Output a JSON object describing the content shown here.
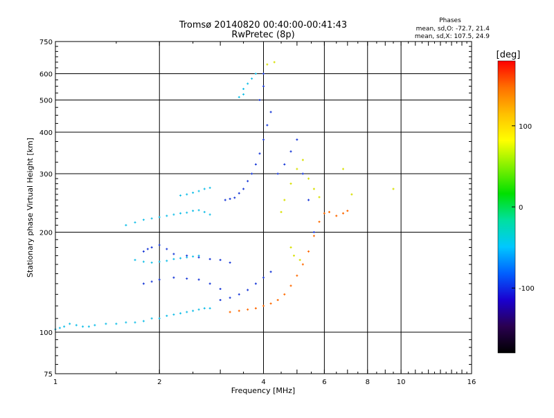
{
  "chart_data": {
    "type": "scatter",
    "title": "Tromsø 20140820 00:40:00-00:41:43",
    "subtitle": "RwPretec (8p)",
    "xlabel": "Frequency [MHz]",
    "ylabel": "Stationary phase Virtual Height [km]",
    "x_scale": "log",
    "y_scale": "log",
    "xlim": [
      1,
      16
    ],
    "ylim": [
      75,
      750
    ],
    "x_ticks": [
      1,
      2,
      4,
      6,
      8,
      10,
      16
    ],
    "y_ticks": [
      75,
      100,
      200,
      300,
      400,
      500,
      600,
      750
    ],
    "grid": true,
    "legend": {
      "title": "Phases",
      "lines": [
        "mean, sd,O: -72.7, 21.4",
        "mean, sd,X: 107.5, 24.9"
      ]
    },
    "colorbar": {
      "label": "[deg]",
      "ticks": [
        100,
        0,
        -100
      ],
      "range": [
        -180,
        180
      ],
      "colors": [
        "#000000",
        "#2a0050",
        "#1a00d0",
        "#0060ff",
        "#00c8ff",
        "#00e0a0",
        "#00e000",
        "#80f000",
        "#ffff00",
        "#ffc000",
        "#ff7000",
        "#ff0000"
      ]
    },
    "series": [
      {
        "description_color": "cyan (~-40 deg)",
        "points": [
          [
            1.0,
            102
          ],
          [
            1.03,
            103
          ],
          [
            1.06,
            104
          ],
          [
            1.1,
            106
          ],
          [
            1.15,
            105
          ],
          [
            1.2,
            104
          ],
          [
            1.25,
            104
          ],
          [
            1.3,
            105
          ],
          [
            1.4,
            106
          ],
          [
            1.5,
            106
          ],
          [
            1.6,
            107
          ],
          [
            1.7,
            107
          ],
          [
            1.8,
            108
          ],
          [
            1.9,
            110
          ],
          [
            2.0,
            110
          ],
          [
            2.1,
            112
          ],
          [
            2.2,
            113
          ],
          [
            2.3,
            114
          ],
          [
            2.4,
            115
          ],
          [
            2.5,
            116
          ],
          [
            2.6,
            117
          ],
          [
            2.7,
            118
          ],
          [
            2.8,
            118
          ],
          [
            1.6,
            210
          ],
          [
            1.7,
            214
          ],
          [
            1.8,
            218
          ],
          [
            1.9,
            220
          ],
          [
            2.0,
            222
          ],
          [
            2.1,
            224
          ],
          [
            2.2,
            226
          ],
          [
            2.3,
            228
          ],
          [
            2.4,
            229
          ],
          [
            2.5,
            232
          ],
          [
            2.6,
            233
          ],
          [
            2.7,
            230
          ],
          [
            2.8,
            226
          ],
          [
            2.3,
            258
          ],
          [
            2.4,
            260
          ],
          [
            2.5,
            263
          ],
          [
            2.6,
            266
          ],
          [
            2.7,
            270
          ],
          [
            2.8,
            272
          ],
          [
            1.7,
            165
          ],
          [
            1.8,
            163
          ],
          [
            1.9,
            162
          ],
          [
            2.0,
            163
          ],
          [
            2.1,
            164
          ],
          [
            2.2,
            166
          ],
          [
            2.3,
            167
          ],
          [
            2.4,
            168
          ],
          [
            2.5,
            169
          ],
          [
            2.6,
            170
          ],
          [
            3.5,
            540
          ],
          [
            3.6,
            560
          ],
          [
            3.7,
            580
          ],
          [
            3.8,
            600
          ],
          [
            3.5,
            520
          ],
          [
            3.4,
            510
          ]
        ]
      },
      {
        "description_color": "blue (~-100 deg)",
        "points": [
          [
            1.8,
            175
          ],
          [
            1.85,
            178
          ],
          [
            1.9,
            180
          ],
          [
            2.0,
            183
          ],
          [
            2.1,
            178
          ],
          [
            2.2,
            172
          ],
          [
            2.4,
            170
          ],
          [
            2.6,
            168
          ],
          [
            2.8,
            166
          ],
          [
            3.0,
            165
          ],
          [
            3.2,
            162
          ],
          [
            1.8,
            140
          ],
          [
            1.9,
            142
          ],
          [
            2.0,
            144
          ],
          [
            2.2,
            146
          ],
          [
            2.4,
            145
          ],
          [
            2.6,
            144
          ],
          [
            2.8,
            140
          ],
          [
            3.0,
            135
          ],
          [
            3.1,
            250
          ],
          [
            3.2,
            252
          ],
          [
            3.3,
            254
          ],
          [
            3.4,
            262
          ],
          [
            3.5,
            270
          ],
          [
            3.6,
            285
          ],
          [
            3.7,
            300
          ],
          [
            3.8,
            320
          ],
          [
            3.9,
            345
          ],
          [
            4.0,
            380
          ],
          [
            4.1,
            420
          ],
          [
            4.2,
            460
          ],
          [
            3.9,
            500
          ],
          [
            4.0,
            550
          ],
          [
            4.0,
            600
          ],
          [
            3.0,
            125
          ],
          [
            3.2,
            127
          ],
          [
            3.4,
            130
          ],
          [
            3.6,
            134
          ],
          [
            3.8,
            140
          ],
          [
            4.0,
            146
          ],
          [
            4.2,
            152
          ],
          [
            4.4,
            300
          ],
          [
            4.6,
            320
          ],
          [
            4.8,
            350
          ],
          [
            5.0,
            380
          ],
          [
            5.2,
            300
          ],
          [
            5.4,
            250
          ],
          [
            5.6,
            200
          ]
        ]
      },
      {
        "description_color": "orange/red (~+120 deg)",
        "points": [
          [
            3.2,
            115
          ],
          [
            3.4,
            116
          ],
          [
            3.6,
            117
          ],
          [
            3.8,
            118
          ],
          [
            4.0,
            120
          ],
          [
            4.2,
            122
          ],
          [
            4.4,
            125
          ],
          [
            4.6,
            130
          ],
          [
            4.8,
            138
          ],
          [
            5.0,
            148
          ],
          [
            5.2,
            160
          ],
          [
            5.4,
            175
          ],
          [
            5.6,
            195
          ],
          [
            5.8,
            215
          ],
          [
            6.0,
            228
          ],
          [
            6.2,
            230
          ],
          [
            6.5,
            224
          ],
          [
            6.8,
            228
          ],
          [
            7.0,
            232
          ]
        ]
      },
      {
        "description_color": "yellow/green (~+60 deg)",
        "points": [
          [
            4.5,
            230
          ],
          [
            4.6,
            250
          ],
          [
            4.8,
            280
          ],
          [
            5.0,
            310
          ],
          [
            5.2,
            330
          ],
          [
            5.4,
            290
          ],
          [
            5.6,
            270
          ],
          [
            5.8,
            255
          ],
          [
            4.8,
            180
          ],
          [
            4.9,
            170
          ],
          [
            5.1,
            165
          ],
          [
            4.3,
            650
          ],
          [
            4.1,
            640
          ],
          [
            6.8,
            310
          ],
          [
            7.2,
            260
          ],
          [
            9.5,
            270
          ]
        ]
      }
    ]
  }
}
